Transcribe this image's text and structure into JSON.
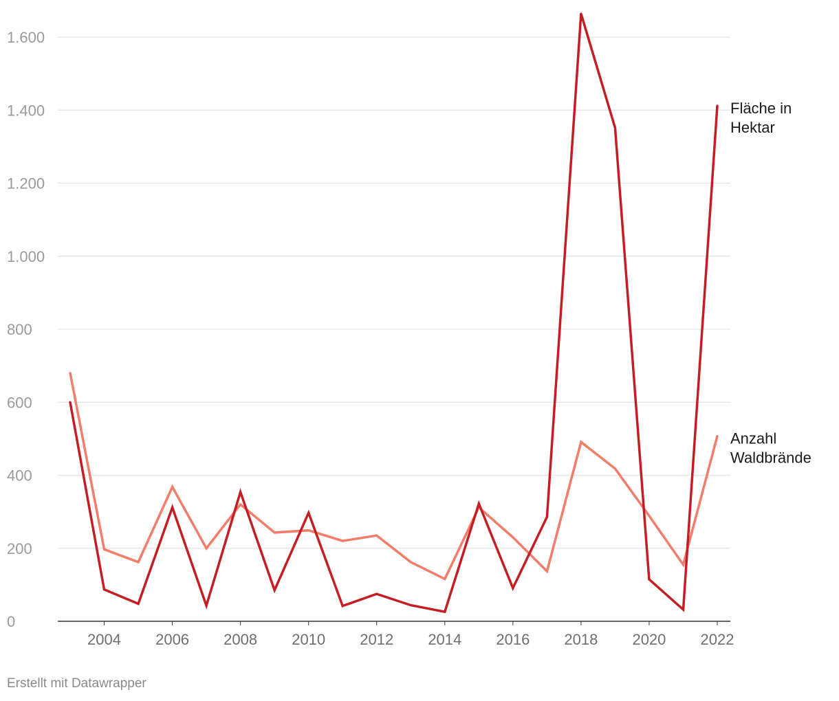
{
  "chart_data": {
    "type": "line",
    "x": [
      2003,
      2004,
      2005,
      2006,
      2007,
      2008,
      2009,
      2010,
      2011,
      2012,
      2013,
      2014,
      2015,
      2016,
      2017,
      2018,
      2019,
      2020,
      2021,
      2022
    ],
    "series": [
      {
        "name": "Anzahl Waldbrände",
        "label_lines": [
          "Anzahl",
          "Waldbrände"
        ],
        "color": "#f47c6a",
        "values": [
          680,
          197,
          162,
          368,
          200,
          320,
          243,
          249,
          220,
          235,
          162,
          116,
          312,
          230,
          137,
          491,
          418,
          289,
          155,
          507
        ]
      },
      {
        "name": "Fläche in Hektar",
        "label_lines": [
          "Fläche in",
          "Hektar"
        ],
        "color": "#c41e24",
        "values": [
          600,
          87,
          48,
          312,
          43,
          354,
          85,
          297,
          42,
          75,
          44,
          26,
          322,
          91,
          286,
          1664,
          1352,
          115,
          32,
          1412
        ]
      }
    ],
    "ylim": [
      0,
      1600
    ],
    "y_ticks": [
      0,
      200,
      400,
      600,
      800,
      1000,
      1200,
      1400,
      1600
    ],
    "y_tick_labels": [
      "0",
      "200",
      "400",
      "600",
      "800",
      "1.000",
      "1.200",
      "1.400",
      "1.600"
    ],
    "x_ticks": [
      2004,
      2006,
      2008,
      2010,
      2012,
      2014,
      2016,
      2018,
      2020,
      2022
    ],
    "x_tick_labels": [
      "2004",
      "2006",
      "2008",
      "2010",
      "2012",
      "2014",
      "2016",
      "2018",
      "2020",
      "2022"
    ],
    "grid": true,
    "legend": "inline-right",
    "title": "",
    "xlabel": "",
    "ylabel": ""
  },
  "footer": "Erstellt mit Datawrapper",
  "colors": {
    "grid": "#e3e3e3",
    "baseline": "#333333"
  }
}
